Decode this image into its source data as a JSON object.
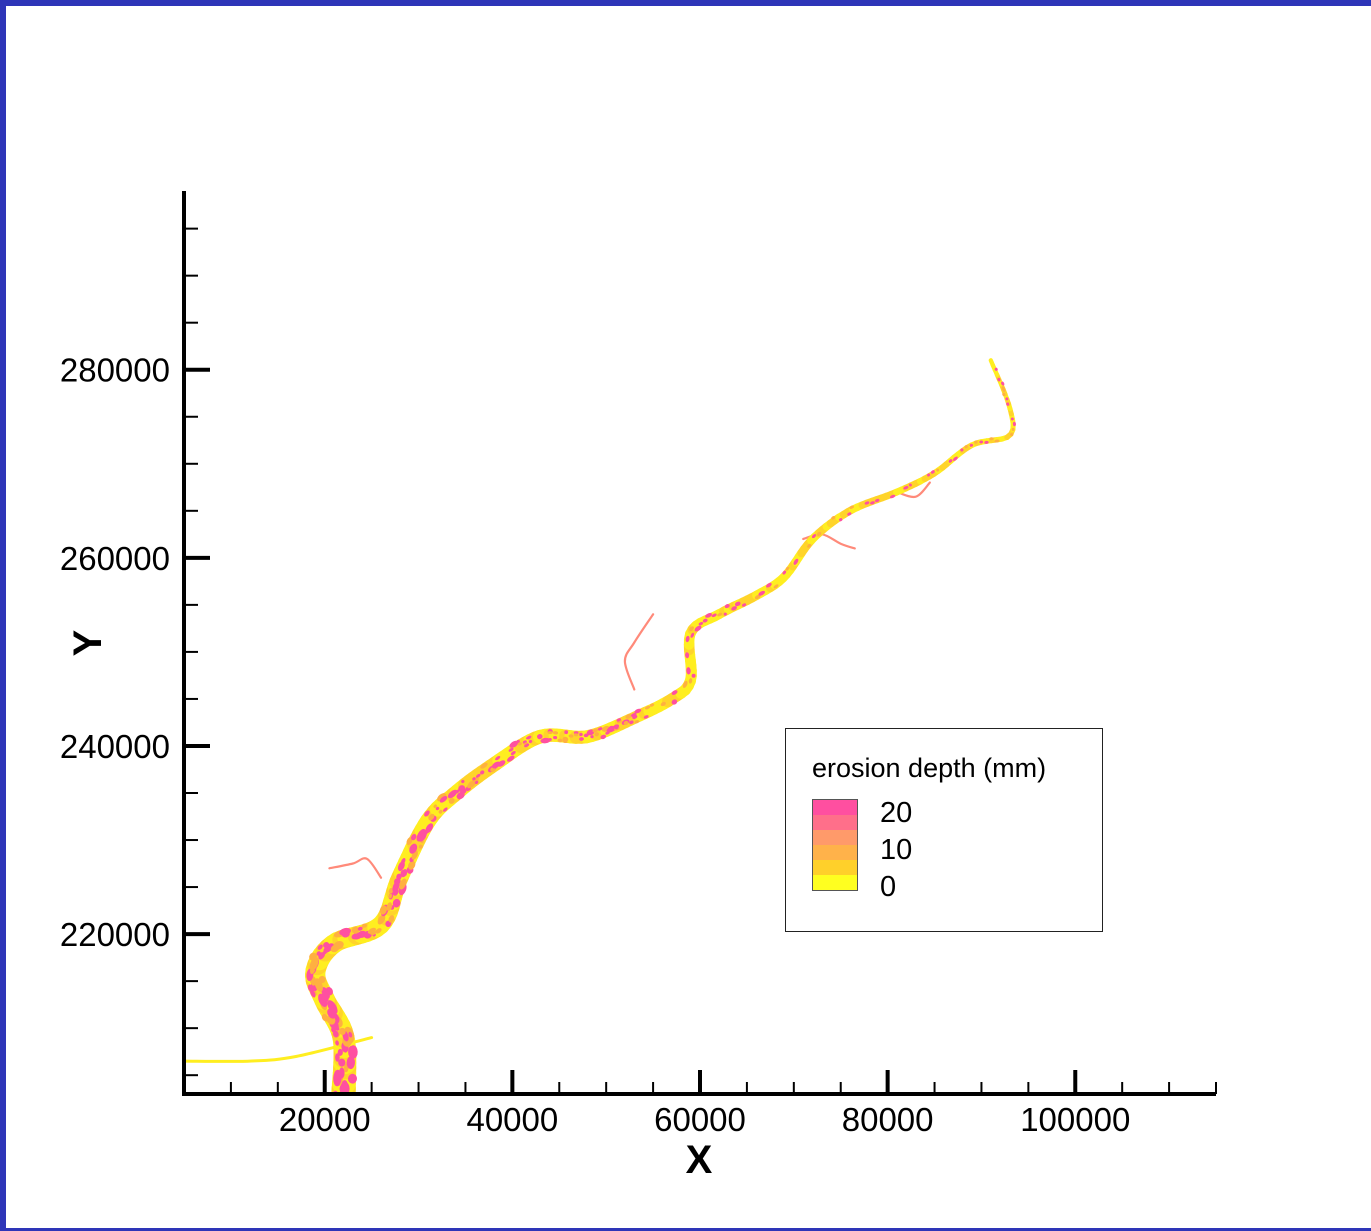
{
  "chart_data": {
    "type": "heatmap",
    "xlabel": "X",
    "ylabel": "Y",
    "xlim": [
      5000,
      115000
    ],
    "ylim": [
      203000,
      299000
    ],
    "x_ticks": [
      20000,
      40000,
      60000,
      80000,
      100000
    ],
    "y_ticks": [
      220000,
      240000,
      260000,
      280000
    ],
    "x_minor_step": 5000,
    "y_minor_step": 5000,
    "grid": false,
    "legend": {
      "title": "erosion depth (mm)",
      "placement": "right",
      "levels": [
        20,
        10,
        0
      ],
      "colors": [
        "#ff4fa0",
        "#ff6f8a",
        "#ff9a6a",
        "#ffb24a",
        "#ffd02a",
        "#ffff20"
      ]
    },
    "colors": {
      "low": "#ffee20",
      "mid": "#ffb040",
      "high": "#ff50a0",
      "frame_border": "#2e35b8"
    },
    "river": {
      "description_points": [
        [
          22000,
          203000
        ],
        [
          22000,
          209000
        ],
        [
          20000,
          213000
        ],
        [
          19000,
          216000
        ],
        [
          21000,
          219000
        ],
        [
          26000,
          221000
        ],
        [
          28000,
          226000
        ],
        [
          31000,
          232000
        ],
        [
          34000,
          235000
        ],
        [
          38000,
          238000
        ],
        [
          43000,
          241000
        ],
        [
          48000,
          241000
        ],
        [
          53000,
          243000
        ],
        [
          57000,
          245000
        ],
        [
          59000,
          247000
        ],
        [
          59000,
          252000
        ],
        [
          62000,
          254000
        ],
        [
          66000,
          256000
        ],
        [
          69000,
          258000
        ],
        [
          72000,
          262000
        ],
        [
          76000,
          265000
        ],
        [
          81000,
          267000
        ],
        [
          85000,
          269000
        ],
        [
          89000,
          272000
        ],
        [
          93000,
          273000
        ],
        [
          93000,
          276000
        ],
        [
          91000,
          281000
        ]
      ],
      "main_channel_start_width": 2600,
      "main_channel_end_width": 450,
      "tributaries": [
        [
          [
            25000,
            209000
          ],
          [
            17000,
            207000
          ],
          [
            12000,
            206500
          ],
          [
            5000,
            206500
          ]
        ],
        [
          [
            26000,
            226000
          ],
          [
            24500,
            228000
          ],
          [
            23000,
            227500
          ],
          [
            20500,
            227000
          ]
        ],
        [
          [
            53000,
            246000
          ],
          [
            52000,
            249000
          ],
          [
            53000,
            251000
          ],
          [
            55000,
            254000
          ]
        ],
        [
          [
            71000,
            262000
          ],
          [
            73000,
            262500
          ],
          [
            75000,
            261500
          ],
          [
            76500,
            261000
          ]
        ],
        [
          [
            81000,
            267000
          ],
          [
            83000,
            266500
          ],
          [
            84500,
            268000
          ]
        ]
      ]
    }
  }
}
